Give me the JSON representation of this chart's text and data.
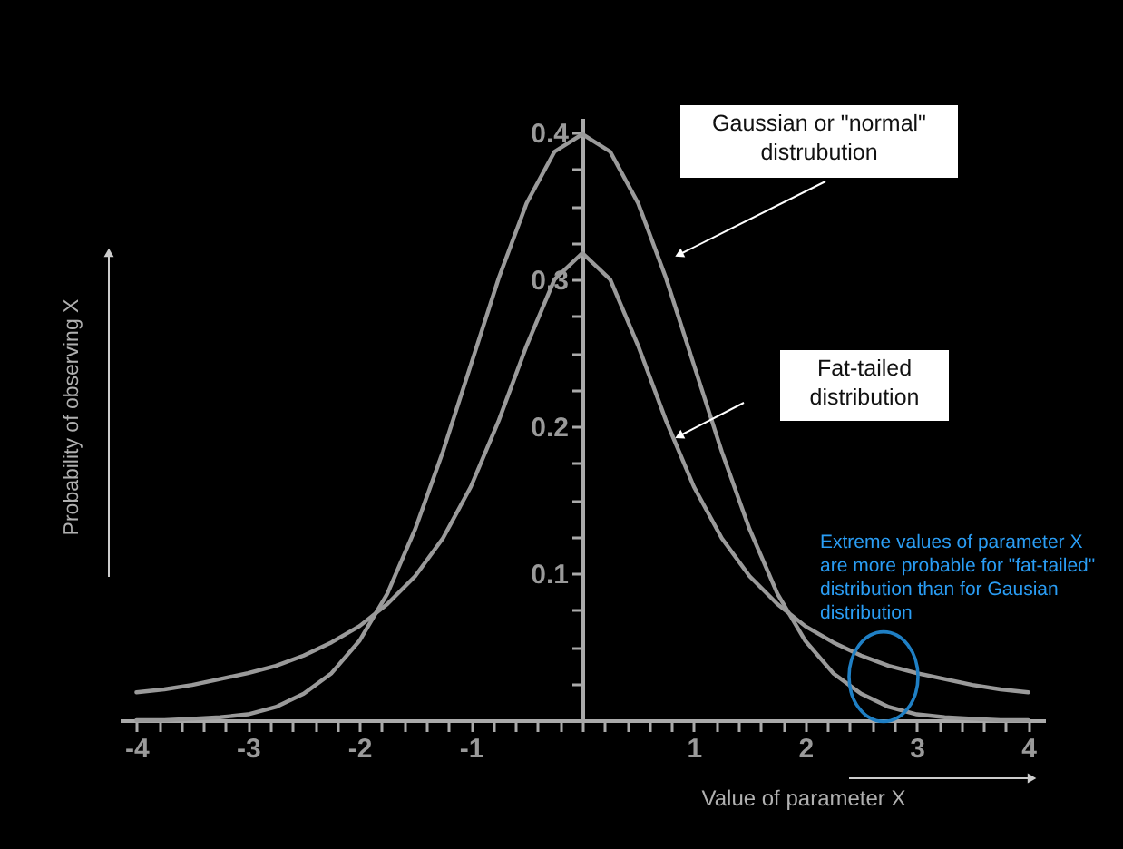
{
  "chart_data": {
    "type": "line",
    "xlabel": "Value of parameter X",
    "ylabel": "Probability of observing X",
    "x": [
      -4,
      -3.75,
      -3.5,
      -3.25,
      -3,
      -2.75,
      -2.5,
      -2.25,
      -2,
      -1.75,
      -1.5,
      -1.25,
      -1,
      -0.75,
      -0.5,
      -0.25,
      0,
      0.25,
      0.5,
      0.75,
      1,
      1.25,
      1.5,
      1.75,
      2,
      2.25,
      2.5,
      2.75,
      3,
      3.25,
      3.5,
      3.75,
      4
    ],
    "series": [
      {
        "color": "#9a9a9a",
        "values": [
          0.0,
          0.0,
          0.001,
          0.002,
          0.004,
          0.009,
          0.018,
          0.032,
          0.054,
          0.086,
          0.13,
          0.183,
          0.242,
          0.301,
          0.352,
          0.387,
          0.399,
          0.387,
          0.352,
          0.301,
          0.242,
          0.183,
          0.13,
          0.086,
          0.054,
          0.032,
          0.018,
          0.009,
          0.004,
          0.002,
          0.001,
          0.0,
          0.0
        ]
      },
      {
        "color": "#9a9a9a",
        "values": [
          0.019,
          0.021,
          0.024,
          0.028,
          0.032,
          0.037,
          0.044,
          0.053,
          0.064,
          0.079,
          0.098,
          0.124,
          0.159,
          0.204,
          0.255,
          0.3,
          0.318,
          0.3,
          0.255,
          0.204,
          0.159,
          0.124,
          0.098,
          0.079,
          0.064,
          0.053,
          0.044,
          0.037,
          0.032,
          0.028,
          0.024,
          0.021,
          0.019
        ]
      }
    ],
    "xlim": [
      -4.15,
      4.15
    ],
    "ylim": [
      0,
      0.41
    ],
    "xticks": [
      -4,
      {
        "value": -3.8,
        "label": null
      },
      {
        "value": -3.6,
        "label": null
      },
      {
        "value": -3.4,
        "label": null
      },
      {
        "value": -3.2,
        "label": null
      },
      -3,
      {
        "value": -2.8,
        "label": null
      },
      {
        "value": -2.6,
        "label": null
      },
      {
        "value": -2.4,
        "label": null
      },
      {
        "value": -2.2,
        "label": null
      },
      -2,
      {
        "value": -1.8,
        "label": null
      },
      {
        "value": -1.6,
        "label": null
      },
      {
        "value": -1.4,
        "label": null
      },
      {
        "value": -1.2,
        "label": null
      },
      -1,
      {
        "value": -0.8,
        "label": null
      },
      {
        "value": -0.6,
        "label": null
      },
      {
        "value": -0.4,
        "label": null
      },
      {
        "value": -0.2,
        "label": null
      },
      {
        "value": 0,
        "label": null
      },
      {
        "value": 0.2,
        "label": null
      },
      {
        "value": 0.4,
        "label": null
      },
      {
        "value": 0.6,
        "label": null
      },
      {
        "value": 0.8,
        "label": null
      },
      1,
      {
        "value": 1.2,
        "label": null
      },
      {
        "value": 1.4,
        "label": null
      },
      {
        "value": 1.6,
        "label": null
      },
      {
        "value": 1.8,
        "label": null
      },
      2,
      {
        "value": 2.2,
        "label": null
      },
      {
        "value": 2.4,
        "label": null
      },
      {
        "value": 2.6,
        "label": null
      },
      {
        "value": 2.8,
        "label": null
      },
      3,
      {
        "value": 3.2,
        "label": null
      },
      {
        "value": 3.4,
        "label": null
      },
      {
        "value": 3.6,
        "label": null
      },
      {
        "value": 3.8,
        "label": null
      },
      4
    ],
    "yticks": [
      {
        "value": 0,
        "label": null
      },
      {
        "value": 0.025,
        "label": null
      },
      {
        "value": 0.05,
        "label": null
      },
      {
        "value": 0.075,
        "label": null
      },
      0.1,
      {
        "value": 0.125,
        "label": null
      },
      {
        "value": 0.15,
        "label": null
      },
      {
        "value": 0.175,
        "label": null
      },
      0.2,
      {
        "value": 0.225,
        "label": null
      },
      {
        "value": 0.25,
        "label": null
      },
      {
        "value": 0.275,
        "label": null
      },
      0.3,
      {
        "value": 0.325,
        "label": null
      },
      {
        "value": 0.35,
        "label": null
      },
      {
        "value": 0.375,
        "label": null
      },
      0.4
    ],
    "annotations": [
      "Gaussian or \"normal\"\ndistrubution",
      "Fat-tailed\ndistribution",
      "Extreme values of parameter X\nare more probable for \"fat-tailed\"\ndistribution than for Gausian\ndistribution"
    ],
    "line_style": "solid",
    "marker": "none",
    "grid": false
  }
}
